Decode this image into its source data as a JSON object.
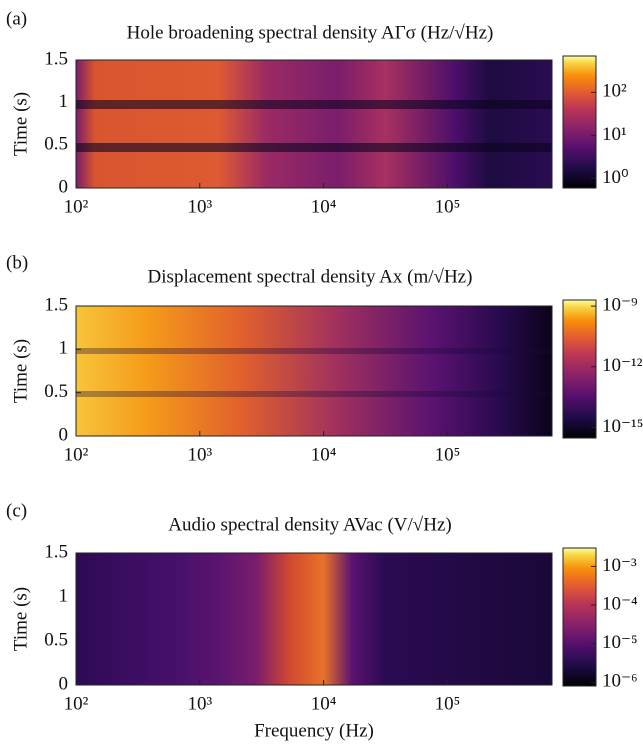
{
  "chart_data": [
    {
      "type": "heatmap",
      "panel": "(a)",
      "title": "Hole broadening spectral density AΓσ (Hz/√Hz)",
      "ylabel": "Time (s)",
      "xlog": true,
      "xlim": [
        100,
        700000
      ],
      "xticks": [
        {
          "value": 100,
          "label": "10²"
        },
        {
          "value": 1000,
          "label": "10³"
        },
        {
          "value": 10000,
          "label": "10⁴"
        },
        {
          "value": 100000,
          "label": "10⁵"
        }
      ],
      "ylim": [
        0,
        1.5
      ],
      "yticks": [
        0,
        0.5,
        1,
        1.5
      ],
      "colorbar": {
        "log": true,
        "clim": [
          0.6,
          700
        ],
        "ticks": [
          {
            "value": 1,
            "label": "10⁰"
          },
          {
            "value": 10,
            "label": "10¹"
          },
          {
            "value": 100,
            "label": "10²"
          }
        ]
      }
    },
    {
      "type": "heatmap",
      "panel": "(b)",
      "title": "Displacement spectral density Ax (m/√Hz)",
      "ylabel": "Time (s)",
      "xlog": true,
      "xlim": [
        100,
        700000
      ],
      "xticks": [
        {
          "value": 100,
          "label": "10²"
        },
        {
          "value": 1000,
          "label": "10³"
        },
        {
          "value": 10000,
          "label": "10⁴"
        },
        {
          "value": 100000,
          "label": "10⁵"
        }
      ],
      "ylim": [
        0,
        1.5
      ],
      "yticks": [
        0,
        0.5,
        1,
        1.5
      ],
      "colorbar": {
        "log": true,
        "clim": [
          3e-16,
          2e-09
        ],
        "ticks": [
          {
            "value": 1e-09,
            "label": "10⁻⁹"
          },
          {
            "value": 1e-12,
            "label": "10⁻¹²"
          },
          {
            "value": 1e-15,
            "label": "10⁻¹⁵"
          }
        ]
      }
    },
    {
      "type": "heatmap",
      "panel": "(c)",
      "title": "Audio spectral density AVac (V/√Hz)",
      "ylabel": "Time (s)",
      "xlabel": "Frequency (Hz)",
      "xlog": true,
      "xlim": [
        100,
        700000
      ],
      "xticks": [
        {
          "value": 100,
          "label": "10²"
        },
        {
          "value": 1000,
          "label": "10³"
        },
        {
          "value": 10000,
          "label": "10⁴"
        },
        {
          "value": 100000,
          "label": "10⁵"
        }
      ],
      "ylim": [
        0,
        1.5
      ],
      "yticks": [
        0,
        0.5,
        1,
        1.5
      ],
      "colorbar": {
        "log": true,
        "clim": [
          8e-07,
          0.003
        ],
        "ticks": [
          {
            "value": 0.001,
            "label": "10⁻³"
          },
          {
            "value": 0.0001,
            "label": "10⁻⁴"
          },
          {
            "value": 1e-05,
            "label": "10⁻⁵"
          },
          {
            "value": 1e-06,
            "label": "10⁻⁶"
          }
        ]
      }
    }
  ]
}
